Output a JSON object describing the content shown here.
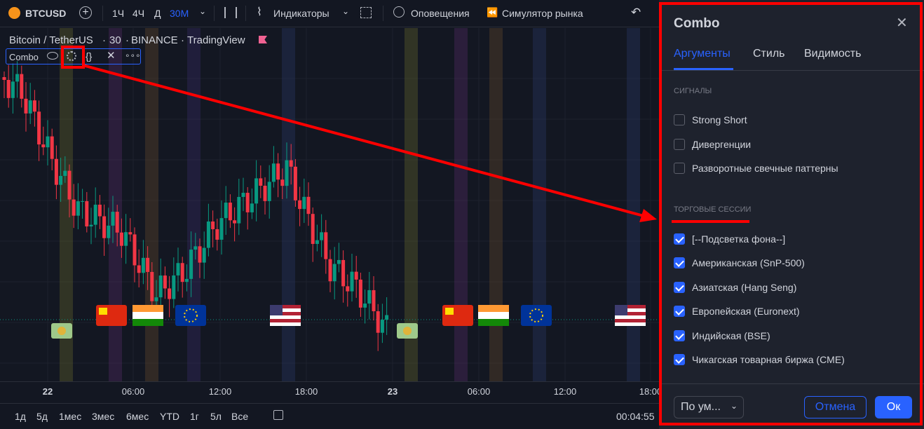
{
  "toolbar": {
    "symbol": "BTCUSD",
    "intervals": [
      "1Ч",
      "4Ч",
      "Д",
      "30М"
    ],
    "indicators": "Индикаторы",
    "alerts": "Оповещения",
    "replay": "Симулятор рынка"
  },
  "chart": {
    "symbol": "Bitcoin / TetherUS",
    "interval": "30",
    "exchange": "BINANCE",
    "source": "TradingView",
    "indicator": "Combo",
    "time_labels": [
      "22",
      "06:00",
      "12:00",
      "18:00",
      "23",
      "06:00",
      "12:00",
      "18:00"
    ]
  },
  "bottom": {
    "ranges": [
      "1д",
      "5д",
      "1мес",
      "3мес",
      "6мес",
      "YTD",
      "1г",
      "5л",
      "Все"
    ],
    "clock": "00:04:55"
  },
  "dialog": {
    "title": "Combo",
    "tabs": [
      "Аргументы",
      "Стиль",
      "Видимость"
    ],
    "signals": {
      "title": "СИГНАЛЫ",
      "items": [
        {
          "label": "Strong Short",
          "checked": false
        },
        {
          "label": "Дивергенции",
          "checked": false
        },
        {
          "label": "Разворотные свечные паттерны",
          "checked": false
        }
      ]
    },
    "sessions": {
      "title": "ТОРГОВЫЕ СЕССИИ",
      "items": [
        {
          "label": "[--Подсветка фона--]",
          "checked": true
        },
        {
          "label": "Американская (SnP-500)",
          "checked": true
        },
        {
          "label": "Азиатская (Hang Seng)",
          "checked": true
        },
        {
          "label": "Европейская (Euronext)",
          "checked": true
        },
        {
          "label": "Индийская (BSE)",
          "checked": true
        },
        {
          "label": "Чикагская товарная биржа (CME)",
          "checked": true
        }
      ]
    },
    "defaults": "По ум...",
    "cancel": "Отмена",
    "ok": "Ок"
  }
}
